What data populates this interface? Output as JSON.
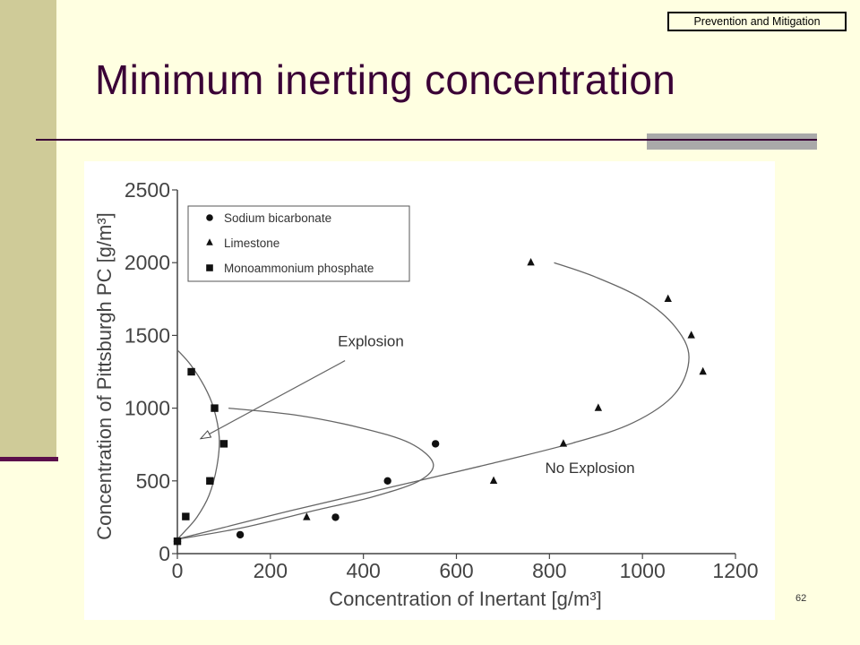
{
  "slide": {
    "section_tag": "Prevention and Mitigation",
    "title": "Minimum inerting concentration",
    "page_number": "62",
    "colors": {
      "background": "#FFFFE1",
      "sidebar": "#CFCB98",
      "title": "#3A0036",
      "rule_accent": "#A9A9A9"
    }
  },
  "chart_data": {
    "type": "scatter",
    "xlabel": "Concentration of Inertant [g/m³]",
    "ylabel": "Concentration of Pittsburgh PC [g/m³]",
    "xlim": [
      0,
      1200
    ],
    "ylim": [
      0,
      2500
    ],
    "x_ticks": [
      0,
      200,
      400,
      600,
      800,
      1000,
      1200
    ],
    "y_ticks": [
      0,
      500,
      1000,
      1500,
      2000,
      2500
    ],
    "grid": false,
    "legend_position": "top-left",
    "series": [
      {
        "name": "Sodium bicarbonate",
        "marker": "circle",
        "points": [
          [
            0,
            85
          ],
          [
            135,
            130
          ],
          [
            340,
            250
          ],
          [
            452,
            500
          ],
          [
            555,
            755
          ]
        ]
      },
      {
        "name": "Limestone",
        "marker": "triangle",
        "points": [
          [
            0,
            85
          ],
          [
            278,
            250
          ],
          [
            680,
            500
          ],
          [
            830,
            755
          ],
          [
            905,
            1000
          ],
          [
            1055,
            1750
          ],
          [
            1105,
            1500
          ],
          [
            1130,
            1250
          ],
          [
            760,
            2000
          ]
        ]
      },
      {
        "name": "Monoammonium phosphate",
        "marker": "square",
        "points": [
          [
            0,
            85
          ],
          [
            18,
            255
          ],
          [
            70,
            500
          ],
          [
            100,
            755
          ],
          [
            80,
            1000
          ],
          [
            30,
            1250
          ]
        ]
      }
    ],
    "boundaries": [
      {
        "label": "Monoammonium phosphate",
        "points": [
          [
            0,
            1400
          ],
          [
            28,
            1300
          ],
          [
            58,
            1150
          ],
          [
            78,
            1000
          ],
          [
            90,
            800
          ],
          [
            85,
            600
          ],
          [
            68,
            400
          ],
          [
            42,
            250
          ],
          [
            15,
            150
          ],
          [
            0,
            100
          ]
        ]
      },
      {
        "label": "Sodium bicarbonate",
        "points": [
          [
            110,
            1000
          ],
          [
            260,
            950
          ],
          [
            400,
            860
          ],
          [
            500,
            760
          ],
          [
            550,
            620
          ],
          [
            520,
            500
          ],
          [
            420,
            390
          ],
          [
            300,
            300
          ],
          [
            150,
            185
          ],
          [
            40,
            120
          ],
          [
            0,
            100
          ]
        ]
      },
      {
        "label": "Limestone",
        "points": [
          [
            810,
            2000
          ],
          [
            900,
            1900
          ],
          [
            1000,
            1750
          ],
          [
            1070,
            1560
          ],
          [
            1100,
            1350
          ],
          [
            1070,
            1100
          ],
          [
            980,
            900
          ],
          [
            850,
            760
          ],
          [
            650,
            600
          ],
          [
            450,
            450
          ],
          [
            250,
            300
          ],
          [
            100,
            180
          ],
          [
            0,
            100
          ]
        ]
      }
    ],
    "annotations": [
      {
        "text": "Explosion",
        "x": 345,
        "y": 1425,
        "arrow_to": [
          50,
          790
        ]
      },
      {
        "text": "No Explosion",
        "x": 910,
        "y": 590
      }
    ]
  }
}
